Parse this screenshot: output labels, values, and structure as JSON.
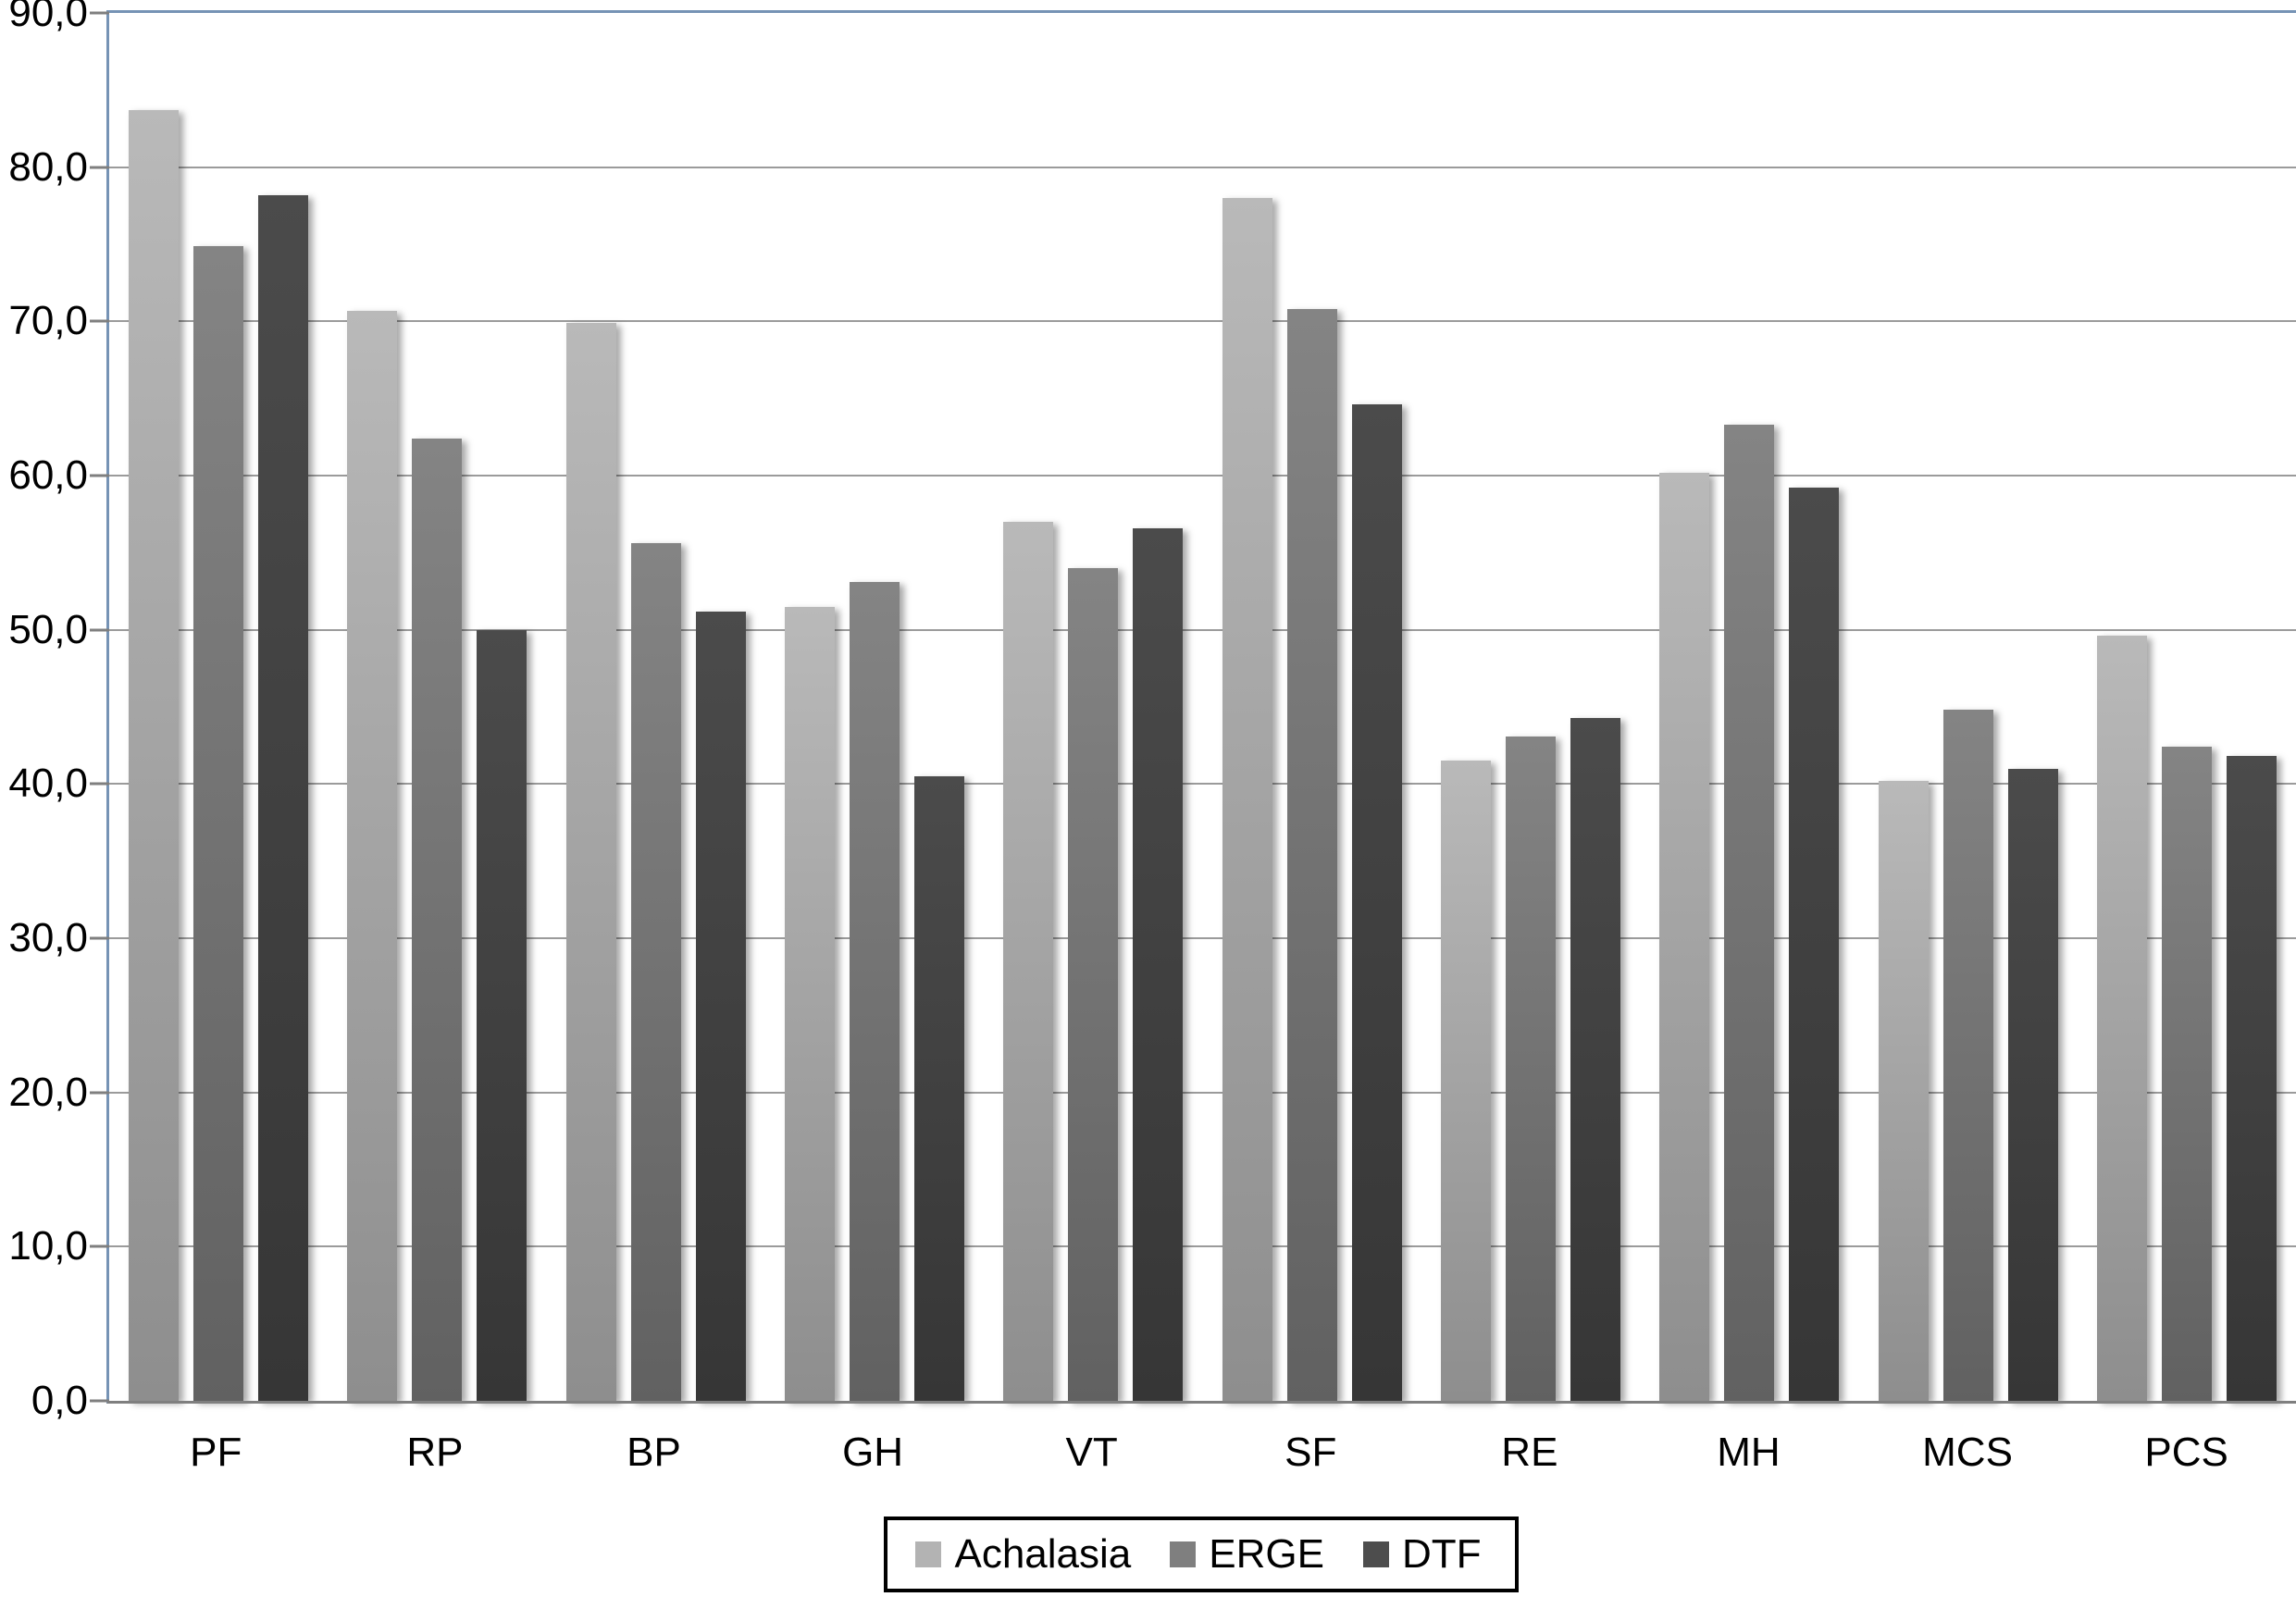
{
  "chart_data": {
    "type": "bar",
    "categories": [
      "PF",
      "RP",
      "BP",
      "GH",
      "VT",
      "SF",
      "RE",
      "MH",
      "MCS",
      "PCS"
    ],
    "series": [
      {
        "name": "Achalasia",
        "values": [
          83.7,
          70.7,
          69.9,
          51.5,
          57.0,
          78.0,
          41.5,
          60.2,
          40.2,
          49.6
        ],
        "color_top": "#b9b9b9",
        "color_bottom": "#8e8e8e",
        "legend_color": "#b3b3b3"
      },
      {
        "name": "ERGE",
        "values": [
          74.9,
          62.4,
          55.6,
          53.1,
          54.0,
          70.8,
          43.1,
          63.3,
          44.8,
          42.4
        ],
        "color_top": "#848484",
        "color_bottom": "#616161",
        "legend_color": "#7f7f7f"
      },
      {
        "name": "DTF",
        "values": [
          78.2,
          50.0,
          51.2,
          40.5,
          56.6,
          64.6,
          44.3,
          59.2,
          41.0,
          41.8
        ],
        "color_top": "#4b4b4b",
        "color_bottom": "#363636",
        "legend_color": "#4d4d4d"
      }
    ],
    "ylim": [
      0,
      90
    ],
    "ytick_step": 10,
    "ytick_labels": [
      "0,0",
      "10,0",
      "20,0",
      "30,0",
      "40,0",
      "50,0",
      "60,0",
      "70,0",
      "80,0",
      "90,0"
    ],
    "grid": true,
    "legend_position": "bottom-center"
  },
  "colors": {
    "background": "#ffffff",
    "frame_border": "#7693b5",
    "gridline": "#9b9b9b",
    "axis_line": "#7f7f7f",
    "text": "#000000",
    "legend_border": "#000000"
  }
}
